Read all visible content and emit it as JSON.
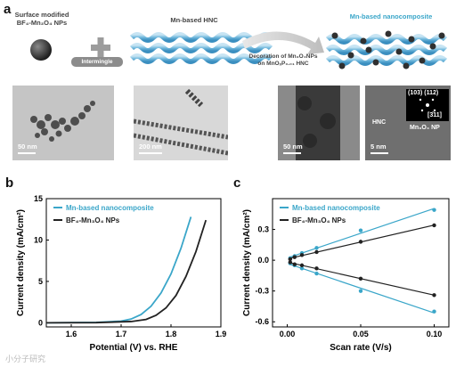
{
  "panel_letters": {
    "a": "a",
    "b": "b",
    "c": "c"
  },
  "schematic": {
    "np_label_line1": "Surface modified",
    "np_label_line2": "BF₄-Mn₃O₄ NPs",
    "intermingle_label": "Intermingle",
    "hnc_label": "Mn-based HNC",
    "arrow_label_line1": "Decoration of Mn₃O₄NPs",
    "arrow_label_line2": "on MnOₓP₀.₀₁ HNC",
    "composite_label": "Mn-based nanocomposite"
  },
  "tem_images": [
    {
      "scale": "50 nm"
    },
    {
      "scale": "200 nm"
    },
    {
      "scale": "50 nm"
    },
    {
      "scale": "5 nm",
      "hnc": "HNC",
      "np": "Mn₃O₄ NP",
      "inset_top": "(103) (112)",
      "inset_bottom": "[3̄11]"
    }
  ],
  "watermark": "小分子研究",
  "colors": {
    "composite": "#3aa6c9",
    "bf4": "#222222",
    "hnc_coil": "#6fb7dc",
    "np": "#3a3a3a"
  },
  "chart_data": [
    {
      "type": "line",
      "xlabel": "Potential (V) vs. RHE",
      "ylabel": "Current density (mA/cm²)",
      "xlim": [
        1.55,
        1.9
      ],
      "ylim": [
        -0.5,
        15
      ],
      "xticks": [
        1.6,
        1.7,
        1.8,
        1.9
      ],
      "yticks": [
        0,
        5,
        10,
        15
      ],
      "legend": "top-left",
      "series": [
        {
          "name": "Mn-based nanocomposite",
          "color": "#3aa6c9",
          "x": [
            1.55,
            1.65,
            1.7,
            1.72,
            1.74,
            1.76,
            1.78,
            1.8,
            1.82,
            1.84
          ],
          "y": [
            0,
            0.05,
            0.2,
            0.45,
            1.0,
            2.0,
            3.6,
            5.9,
            9.0,
            12.8
          ]
        },
        {
          "name": "BF₄-Mn₃O₄ NPs",
          "color": "#222222",
          "x": [
            1.55,
            1.65,
            1.72,
            1.75,
            1.77,
            1.79,
            1.81,
            1.83,
            1.85,
            1.87
          ],
          "y": [
            0,
            0.02,
            0.15,
            0.4,
            0.9,
            1.8,
            3.3,
            5.6,
            8.6,
            12.4
          ]
        }
      ]
    },
    {
      "type": "scatter",
      "xlabel": "Scan rate (V/s)",
      "ylabel": "Current density (mA/cm²)",
      "xlim": [
        -0.01,
        0.11
      ],
      "ylim": [
        -0.65,
        0.6
      ],
      "xticks": [
        0.0,
        0.05,
        0.1
      ],
      "xtick_labels": [
        "0.00",
        "0.05",
        "0.10"
      ],
      "yticks": [
        -0.6,
        -0.3,
        0.0,
        0.3
      ],
      "ytick_labels": [
        "-0.6",
        "-0.3",
        "0.0",
        "0.3"
      ],
      "legend": "top-left",
      "series": [
        {
          "name": "Mn-based nanocomposite",
          "color": "#3aa6c9",
          "x": [
            0.002,
            0.005,
            0.01,
            0.02,
            0.05,
            0.1
          ],
          "y": [
            0.02,
            0.04,
            0.07,
            0.12,
            0.29,
            0.49
          ],
          "y_neg": [
            -0.03,
            -0.05,
            -0.08,
            -0.13,
            -0.3,
            -0.5
          ]
        },
        {
          "name": "BF₄-Mn₃O₄ NPs",
          "color": "#222222",
          "x": [
            0.002,
            0.005,
            0.01,
            0.02,
            0.05,
            0.1
          ],
          "y": [
            0.01,
            0.03,
            0.05,
            0.08,
            0.18,
            0.34
          ],
          "y_neg": [
            -0.02,
            -0.04,
            -0.05,
            -0.08,
            -0.18,
            -0.34
          ]
        }
      ]
    }
  ]
}
